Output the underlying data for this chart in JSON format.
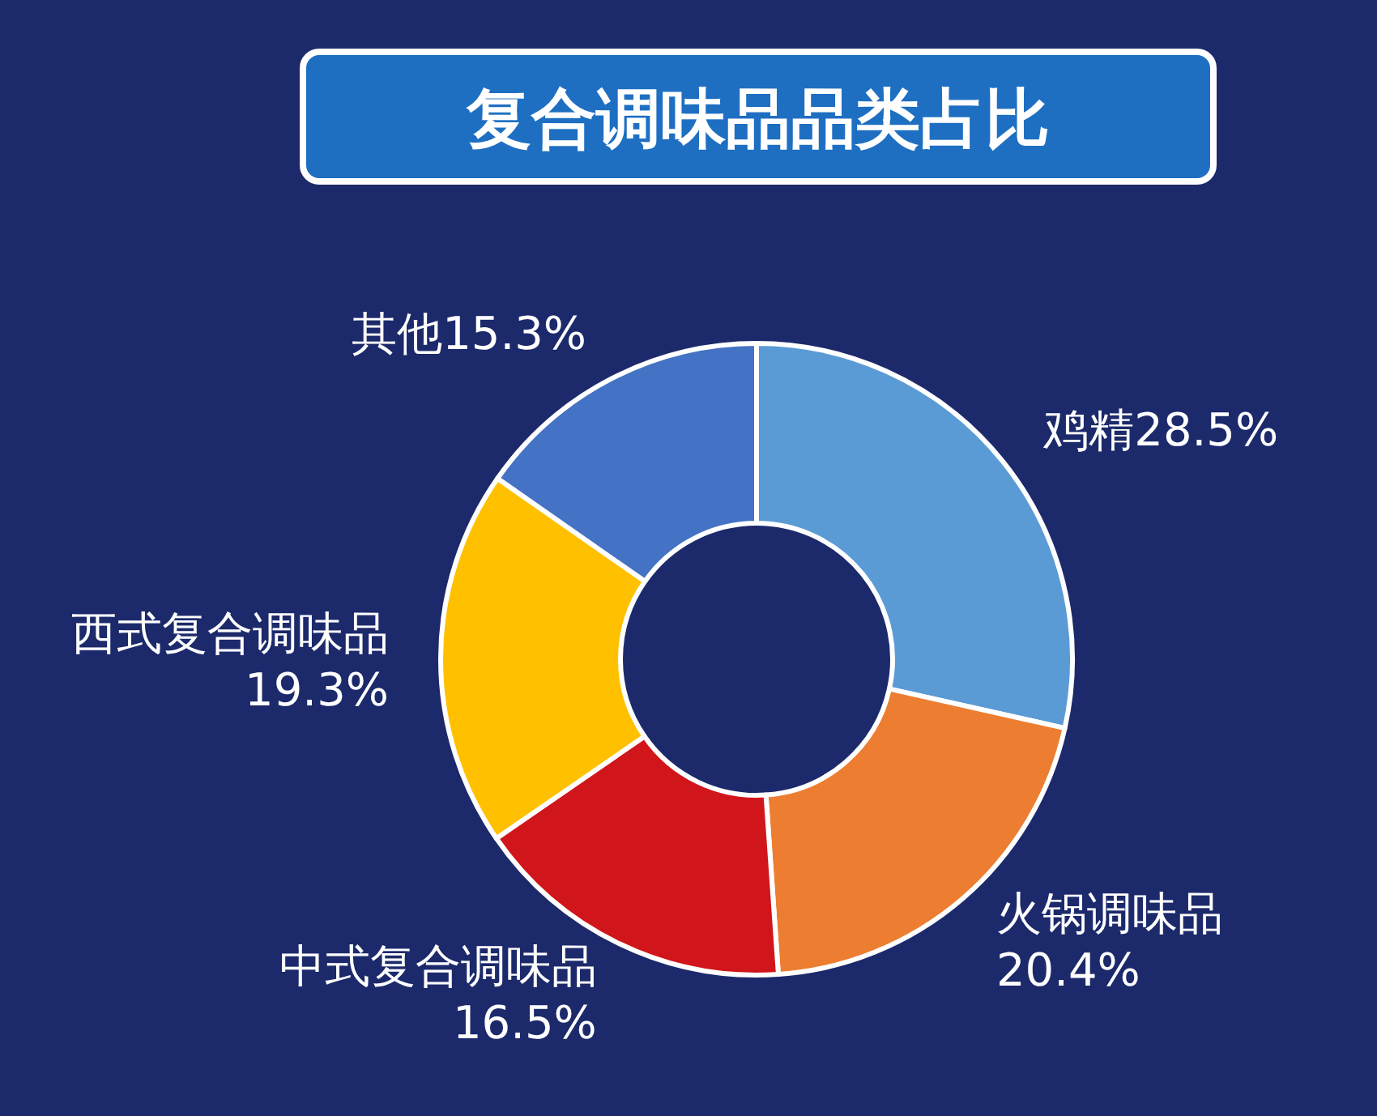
{
  "chart_data": {
    "type": "donut",
    "title": "复合调味品品类占比",
    "categories": [
      "鸡精",
      "火锅调味品",
      "中式复合调味品",
      "西式复合调味品",
      "其他"
    ],
    "values": [
      28.5,
      20.4,
      16.5,
      19.3,
      15.3
    ],
    "value_labels": [
      "28.5%",
      "20.4%",
      "16.5%",
      "19.3%",
      "15.3%"
    ],
    "colors": [
      "#5b9bd5",
      "#ed7d31",
      "#d0161b",
      "#ffc000",
      "#4472c4"
    ]
  }
}
